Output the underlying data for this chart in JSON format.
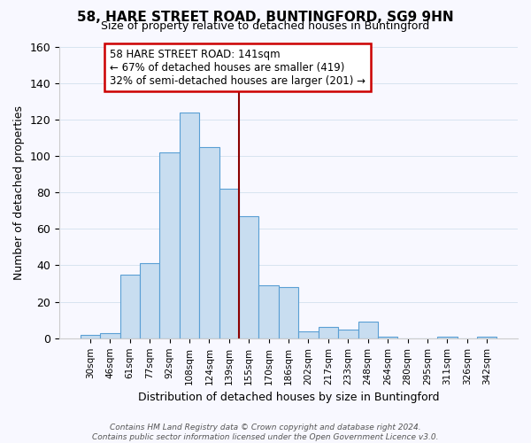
{
  "title": "58, HARE STREET ROAD, BUNTINGFORD, SG9 9HN",
  "subtitle": "Size of property relative to detached houses in Buntingford",
  "xlabel": "Distribution of detached houses by size in Buntingford",
  "ylabel": "Number of detached properties",
  "bin_labels": [
    "30sqm",
    "46sqm",
    "61sqm",
    "77sqm",
    "92sqm",
    "108sqm",
    "124sqm",
    "139sqm",
    "155sqm",
    "170sqm",
    "186sqm",
    "202sqm",
    "217sqm",
    "233sqm",
    "248sqm",
    "264sqm",
    "280sqm",
    "295sqm",
    "311sqm",
    "326sqm",
    "342sqm"
  ],
  "bar_heights": [
    2,
    3,
    35,
    41,
    102,
    124,
    105,
    82,
    67,
    29,
    28,
    4,
    6,
    5,
    9,
    1,
    0,
    0,
    1,
    0,
    1
  ],
  "bar_color": "#c8ddf0",
  "bar_edge_color": "#5a9fd4",
  "vline_x_index": 7.5,
  "vline_color": "#8b0000",
  "annotation_line1": "58 HARE STREET ROAD: 141sqm",
  "annotation_line2": "← 67% of detached houses are smaller (419)",
  "annotation_line3": "32% of semi-detached houses are larger (201) →",
  "annotation_box_color": "#ffffff",
  "annotation_box_edge": "#cc0000",
  "ylim": [
    0,
    160
  ],
  "yticks": [
    0,
    20,
    40,
    60,
    80,
    100,
    120,
    140,
    160
  ],
  "footnote": "Contains HM Land Registry data © Crown copyright and database right 2024.\nContains public sector information licensed under the Open Government Licence v3.0.",
  "background_color": "#f8f8ff",
  "grid_color": "#d8e4f0"
}
